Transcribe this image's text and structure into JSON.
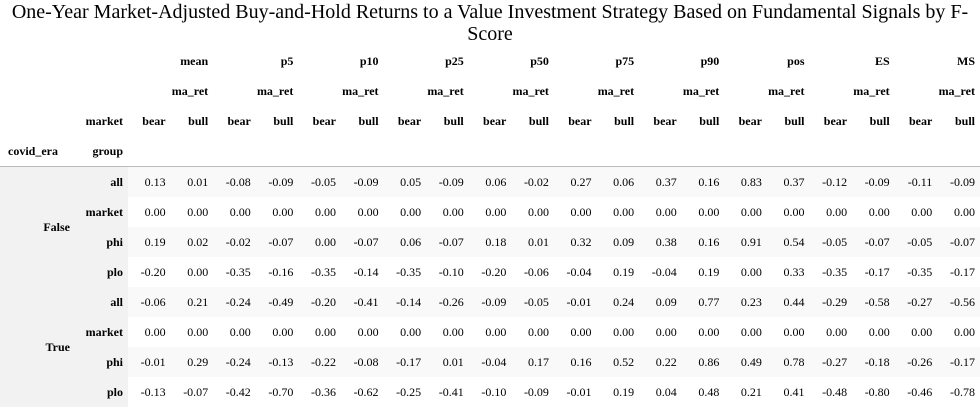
{
  "title": "One-Year Market-Adjusted Buy-and-Hold Returns to a Value Investment Strategy Based on Fundamental Signals by F-Score",
  "table": {
    "stats": [
      "mean",
      "p5",
      "p10",
      "p25",
      "p50",
      "p75",
      "p90",
      "pos",
      "ES",
      "MS"
    ],
    "metric": "ma_ret",
    "market_label": "market",
    "market_values": [
      "bear",
      "bull"
    ],
    "index_names": [
      "covid_era",
      "group"
    ],
    "groups": [
      {
        "covid_era": "False",
        "rows": [
          {
            "group": "all",
            "values": [
              "0.13",
              "0.01",
              "-0.08",
              "-0.09",
              "-0.05",
              "-0.09",
              "0.05",
              "-0.09",
              "0.06",
              "-0.02",
              "0.27",
              "0.06",
              "0.37",
              "0.16",
              "0.83",
              "0.37",
              "-0.12",
              "-0.09",
              "-0.11",
              "-0.09"
            ]
          },
          {
            "group": "market",
            "values": [
              "0.00",
              "0.00",
              "0.00",
              "0.00",
              "0.00",
              "0.00",
              "0.00",
              "0.00",
              "0.00",
              "0.00",
              "0.00",
              "0.00",
              "0.00",
              "0.00",
              "0.00",
              "0.00",
              "0.00",
              "0.00",
              "0.00",
              "0.00"
            ]
          },
          {
            "group": "phi",
            "values": [
              "0.19",
              "0.02",
              "-0.02",
              "-0.07",
              "0.00",
              "-0.07",
              "0.06",
              "-0.07",
              "0.18",
              "0.01",
              "0.32",
              "0.09",
              "0.38",
              "0.16",
              "0.91",
              "0.54",
              "-0.05",
              "-0.07",
              "-0.05",
              "-0.07"
            ]
          },
          {
            "group": "plo",
            "values": [
              "-0.20",
              "0.00",
              "-0.35",
              "-0.16",
              "-0.35",
              "-0.14",
              "-0.35",
              "-0.10",
              "-0.20",
              "-0.06",
              "-0.04",
              "0.19",
              "-0.04",
              "0.19",
              "0.00",
              "0.33",
              "-0.35",
              "-0.17",
              "-0.35",
              "-0.17"
            ]
          }
        ]
      },
      {
        "covid_era": "True",
        "rows": [
          {
            "group": "all",
            "values": [
              "-0.06",
              "0.21",
              "-0.24",
              "-0.49",
              "-0.20",
              "-0.41",
              "-0.14",
              "-0.26",
              "-0.09",
              "-0.05",
              "-0.01",
              "0.24",
              "0.09",
              "0.77",
              "0.23",
              "0.44",
              "-0.29",
              "-0.58",
              "-0.27",
              "-0.56"
            ]
          },
          {
            "group": "market",
            "values": [
              "0.00",
              "0.00",
              "0.00",
              "0.00",
              "0.00",
              "0.00",
              "0.00",
              "0.00",
              "0.00",
              "0.00",
              "0.00",
              "0.00",
              "0.00",
              "0.00",
              "0.00",
              "0.00",
              "0.00",
              "0.00",
              "0.00",
              "0.00"
            ]
          },
          {
            "group": "phi",
            "values": [
              "-0.01",
              "0.29",
              "-0.24",
              "-0.13",
              "-0.22",
              "-0.08",
              "-0.17",
              "0.01",
              "-0.04",
              "0.17",
              "0.16",
              "0.52",
              "0.22",
              "0.86",
              "0.49",
              "0.78",
              "-0.27",
              "-0.18",
              "-0.26",
              "-0.17"
            ]
          },
          {
            "group": "plo",
            "values": [
              "-0.13",
              "-0.07",
              "-0.42",
              "-0.70",
              "-0.36",
              "-0.62",
              "-0.25",
              "-0.41",
              "-0.10",
              "-0.09",
              "-0.01",
              "0.19",
              "0.04",
              "0.48",
              "0.21",
              "0.41",
              "-0.48",
              "-0.80",
              "-0.46",
              "-0.78"
            ]
          }
        ]
      }
    ]
  }
}
